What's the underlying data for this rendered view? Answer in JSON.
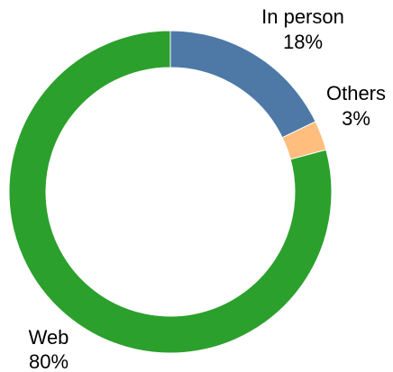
{
  "chart_data": {
    "type": "pie",
    "style": "donut",
    "categories": [
      "In person",
      "Others",
      "Web"
    ],
    "values": [
      18,
      3,
      80
    ],
    "labels": [
      "18%",
      "3%",
      "80%"
    ],
    "colors": [
      "#4e79a7",
      "#ffbe7d",
      "#2ca02c"
    ],
    "start": "12 o'clock",
    "direction": "clockwise",
    "title": "",
    "legend": "none"
  }
}
